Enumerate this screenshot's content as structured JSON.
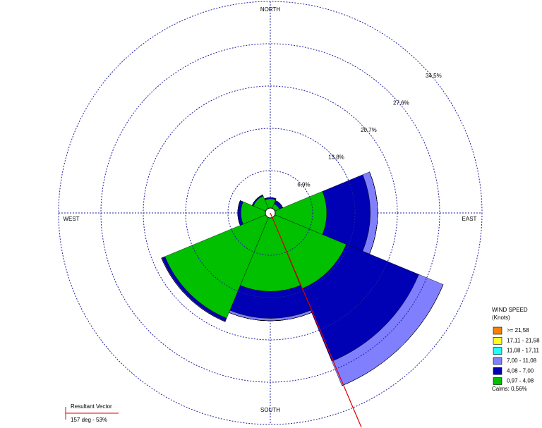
{
  "chart_data": {
    "type": "windrose",
    "directions": [
      0,
      45,
      90,
      135,
      180,
      225,
      270,
      315
    ],
    "sector_width": 45,
    "rlim": [
      0,
      34.5
    ],
    "rticks": [
      {
        "value": 6.9,
        "label": "6,9%"
      },
      {
        "value": 13.8,
        "label": "13,8%"
      },
      {
        "value": 20.7,
        "label": "20,7%"
      },
      {
        "value": 27.6,
        "label": "27,6%"
      },
      {
        "value": 34.5,
        "label": "34,5%"
      }
    ],
    "compass_labels": {
      "north": "NORTH",
      "east": "EAST",
      "south": "SOUTH",
      "west": "WEST"
    },
    "legend_title": [
      "WIND SPEED",
      "(Knots)"
    ],
    "series": [
      {
        "name": ">= 21,58",
        "color": "#ff8000",
        "values": [
          0,
          0,
          0,
          0,
          0,
          0,
          0,
          0
        ]
      },
      {
        "name": "17,11 - 21,58",
        "color": "#ffff20",
        "values": [
          0,
          0,
          0,
          0,
          0,
          0,
          0,
          0
        ]
      },
      {
        "name": "11,08 - 17,11",
        "color": "#20ffff",
        "values": [
          0,
          0,
          0,
          0,
          0,
          0,
          0,
          0
        ]
      },
      {
        "name": "7,00 - 11,08",
        "color": "#8080ff",
        "values": [
          0,
          0,
          1.2,
          4.3,
          0.4,
          0.1,
          0,
          0
        ]
      },
      {
        "name": "4,08 - 7,00",
        "color": "#0000b4",
        "values": [
          0.2,
          0.6,
          7.1,
          12.8,
          4.4,
          0.5,
          0.5,
          0.2
        ]
      },
      {
        "name": "0,97 - 4,08",
        "color": "#00c000",
        "values": [
          2.3,
          1.6,
          9.2,
          13.4,
          12.8,
          18.6,
          4.8,
          3.0
        ]
      }
    ],
    "calms": "Calms: 0,56%",
    "resultant_vector": {
      "title": "Resultant Vector",
      "text": "157 deg - 53%",
      "direction": 157,
      "color": "#e00000"
    }
  }
}
